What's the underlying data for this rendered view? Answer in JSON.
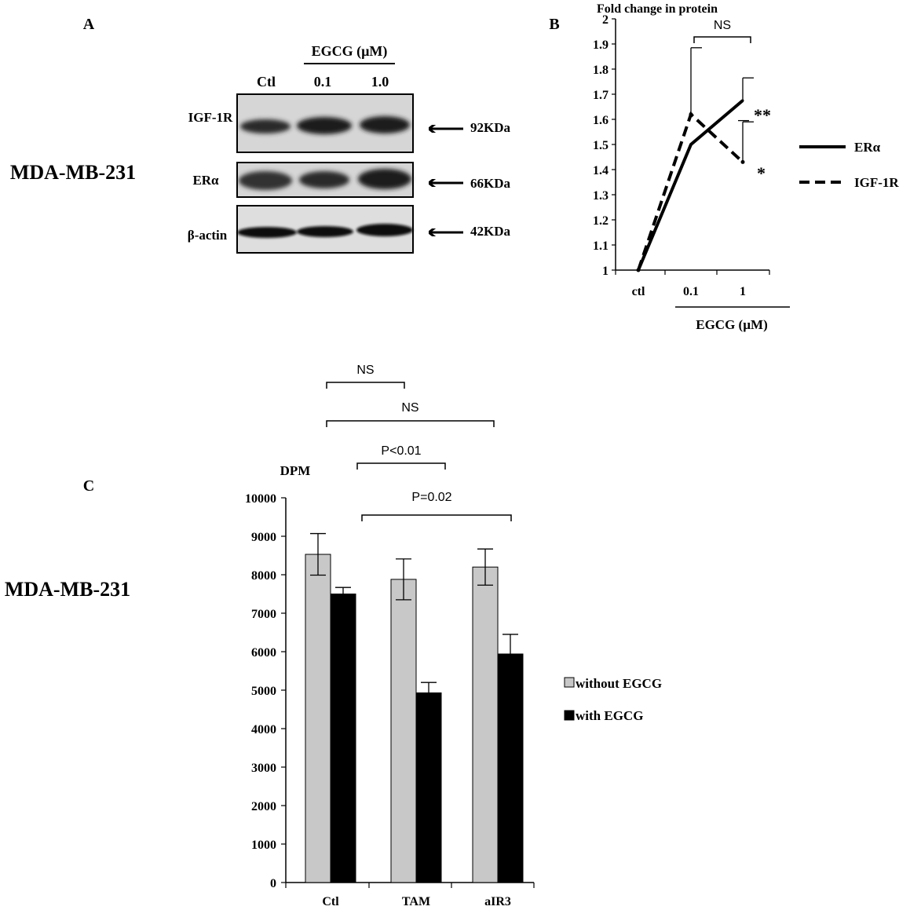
{
  "panels": {
    "A": {
      "letter": "A",
      "cell_line": "MDA-MB-231",
      "treatment_label": "EGCG (µM)",
      "lanes": [
        "Ctl",
        "0.1",
        "1.0"
      ],
      "blots": [
        {
          "name": "IGF-1R",
          "size": "92KDa"
        },
        {
          "name": "ERα",
          "size": "66KDa"
        },
        {
          "name": "β-actin",
          "size": "42KDa"
        }
      ]
    },
    "B": {
      "letter": "B"
    },
    "C": {
      "letter": "C",
      "cell_line": "MDA-MB-231"
    }
  },
  "chart_data": [
    {
      "type": "line",
      "panel": "B",
      "title": "Fold change in protein",
      "xlabel": "EGCG (µM)",
      "ylabel": "",
      "categories": [
        "ctl",
        "0.1",
        "1"
      ],
      "ylim": [
        1,
        2
      ],
      "yticks": [
        "1",
        "1.1",
        "1.2",
        "1.3",
        "1.4",
        "1.5",
        "1.6",
        "1.7",
        "1.8",
        "1.9",
        "2"
      ],
      "grid": false,
      "legend_position": "right",
      "series": [
        {
          "name": "ERα",
          "style": "solid",
          "values": [
            1,
            1.5,
            1.675
          ],
          "error": [
            0,
            0,
            0.09
          ]
        },
        {
          "name": "IGF-1R",
          "style": "dashed",
          "values": [
            1,
            1.62,
            1.43
          ],
          "error": [
            0,
            0.265,
            0.16
          ]
        }
      ],
      "annotations": {
        "bracket_label": "NS",
        "erα_significance": "**",
        "igf1r_significance": "*"
      }
    },
    {
      "type": "bar",
      "panel": "C",
      "ylabel": "DPM",
      "xlabel": "",
      "categories": [
        "Ctl",
        "TAM",
        "aIR3"
      ],
      "ylim": [
        0,
        10000
      ],
      "yticks": [
        "0",
        "1000",
        "2000",
        "3000",
        "4000",
        "5000",
        "6000",
        "7000",
        "8000",
        "9000",
        "10000"
      ],
      "grid": false,
      "legend_position": "right",
      "series": [
        {
          "name": "without EGCG",
          "color": "#c8c8c8",
          "values": [
            8530,
            7880,
            8200
          ],
          "error": [
            540,
            530,
            470
          ]
        },
        {
          "name": "with EGCG",
          "color": "#000000",
          "values": [
            7500,
            4930,
            5940
          ],
          "error": [
            170,
            270,
            510
          ]
        }
      ],
      "comparisons": [
        {
          "label": "NS"
        },
        {
          "label": "NS"
        },
        {
          "label": "P<0.01"
        },
        {
          "label": "P=0.02"
        }
      ]
    }
  ]
}
